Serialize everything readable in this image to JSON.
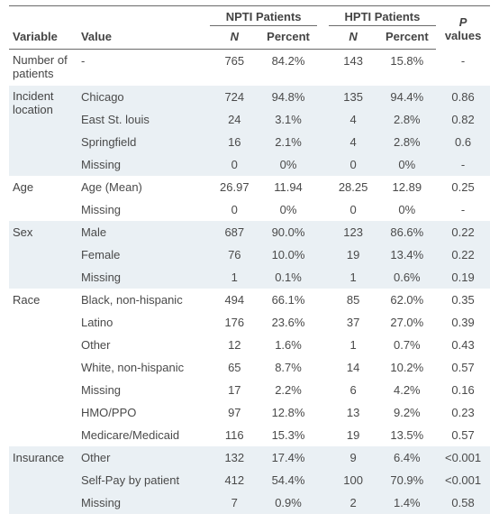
{
  "header": {
    "group1": "NPTI Patients",
    "group2": "HPTI Patients",
    "variable": "Variable",
    "value": "Value",
    "n": "N",
    "percent": "Percent",
    "pvalues_line1": "P",
    "pvalues_line2": "values"
  },
  "colors": {
    "rule": "#6a6a6a",
    "alt_row_bg": "#eaf0f4",
    "text": "#4a4a4a",
    "background": "#ffffff"
  },
  "rows": [
    {
      "variable": "Number of patients",
      "value": "-",
      "npti_n": "765",
      "npti_pct": "84.2%",
      "hpti_n": "143",
      "hpti_pct": "15.8%",
      "p": "-",
      "alt": false,
      "var_rowspan": 1,
      "wrap_var": true
    },
    {
      "variable": "Incident location",
      "value": "Chicago",
      "npti_n": "724",
      "npti_pct": "94.8%",
      "hpti_n": "135",
      "hpti_pct": "94.4%",
      "p": "0.86",
      "alt": true,
      "var_rowspan": 4,
      "wrap_var": true
    },
    {
      "variable": null,
      "value": "East St. louis",
      "npti_n": "24",
      "npti_pct": "3.1%",
      "hpti_n": "4",
      "hpti_pct": "2.8%",
      "p": "0.82",
      "alt": true
    },
    {
      "variable": null,
      "value": "Springfield",
      "npti_n": "16",
      "npti_pct": "2.1%",
      "hpti_n": "4",
      "hpti_pct": "2.8%",
      "p": "0.6",
      "alt": true
    },
    {
      "variable": null,
      "value": "Missing",
      "npti_n": "0",
      "npti_pct": "0%",
      "hpti_n": "0",
      "hpti_pct": "0%",
      "p": "-",
      "alt": true
    },
    {
      "variable": "Age",
      "value": "Age (Mean)",
      "npti_n": "26.97",
      "npti_pct": "11.94",
      "hpti_n": "28.25",
      "hpti_pct": "12.89",
      "p": "0.25",
      "alt": false,
      "var_rowspan": 2
    },
    {
      "variable": null,
      "value": "Missing",
      "npti_n": "0",
      "npti_pct": "0%",
      "hpti_n": "0",
      "hpti_pct": "0%",
      "p": "-",
      "alt": false
    },
    {
      "variable": "Sex",
      "value": "Male",
      "npti_n": "687",
      "npti_pct": "90.0%",
      "hpti_n": "123",
      "hpti_pct": "86.6%",
      "p": "0.22",
      "alt": true,
      "var_rowspan": 3
    },
    {
      "variable": null,
      "value": "Female",
      "npti_n": "76",
      "npti_pct": "10.0%",
      "hpti_n": "19",
      "hpti_pct": "13.4%",
      "p": "0.22",
      "alt": true
    },
    {
      "variable": null,
      "value": "Missing",
      "npti_n": "1",
      "npti_pct": "0.1%",
      "hpti_n": "1",
      "hpti_pct": "0.6%",
      "p": "0.19",
      "alt": true
    },
    {
      "variable": "Race",
      "value": "Black, non-hispanic",
      "npti_n": "494",
      "npti_pct": "66.1%",
      "hpti_n": "85",
      "hpti_pct": "62.0%",
      "p": "0.35",
      "alt": false,
      "var_rowspan": 7
    },
    {
      "variable": null,
      "value": "Latino",
      "npti_n": "176",
      "npti_pct": "23.6%",
      "hpti_n": "37",
      "hpti_pct": "27.0%",
      "p": "0.39",
      "alt": false
    },
    {
      "variable": null,
      "value": "Other",
      "npti_n": "12",
      "npti_pct": "1.6%",
      "hpti_n": "1",
      "hpti_pct": "0.7%",
      "p": "0.43",
      "alt": false
    },
    {
      "variable": null,
      "value": "White, non-hispanic",
      "npti_n": "65",
      "npti_pct": "8.7%",
      "hpti_n": "14",
      "hpti_pct": "10.2%",
      "p": "0.57",
      "alt": false
    },
    {
      "variable": null,
      "value": "Missing",
      "npti_n": "17",
      "npti_pct": "2.2%",
      "hpti_n": "6",
      "hpti_pct": "4.2%",
      "p": "0.16",
      "alt": false
    },
    {
      "variable": null,
      "value": "HMO/PPO",
      "npti_n": "97",
      "npti_pct": "12.8%",
      "hpti_n": "13",
      "hpti_pct": "9.2%",
      "p": "0.23",
      "alt": false
    },
    {
      "variable": null,
      "value": "Medicare/Medicaid",
      "npti_n": "116",
      "npti_pct": "15.3%",
      "hpti_n": "19",
      "hpti_pct": "13.5%",
      "p": "0.57",
      "alt": false
    },
    {
      "variable": "Insurance",
      "value": "Other",
      "npti_n": "132",
      "npti_pct": "17.4%",
      "hpti_n": "9",
      "hpti_pct": "6.4%",
      "p": "<0.001",
      "alt": true,
      "var_rowspan": 3
    },
    {
      "variable": null,
      "value": "Self-Pay by patient",
      "npti_n": "412",
      "npti_pct": "54.4%",
      "hpti_n": "100",
      "hpti_pct": "70.9%",
      "p": "<0.001",
      "alt": true
    },
    {
      "variable": null,
      "value": "Missing",
      "npti_n": "7",
      "npti_pct": "0.9%",
      "hpti_n": "2",
      "hpti_pct": "1.4%",
      "p": "0.58",
      "alt": true
    }
  ]
}
